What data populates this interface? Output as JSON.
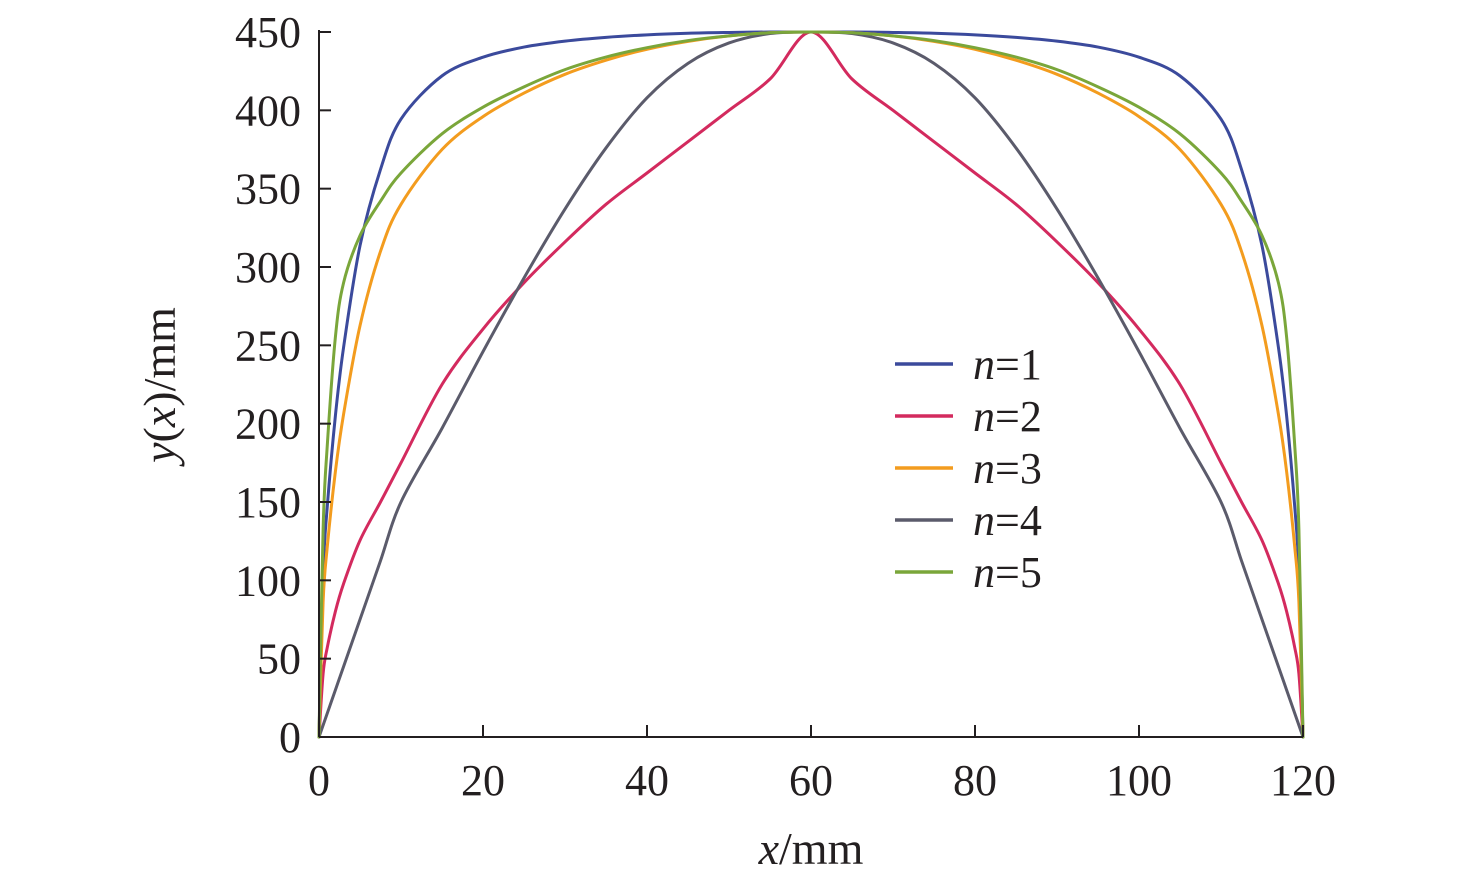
{
  "chart_data": {
    "type": "line",
    "title": "",
    "xlabel": "x/mm",
    "ylabel": "y(x)/mm",
    "xlim": [
      0,
      120
    ],
    "ylim": [
      0,
      450
    ],
    "x_ticks": [
      0,
      20,
      40,
      60,
      80,
      100,
      120
    ],
    "x_tick_labels": [
      "0",
      "20",
      "40",
      "60",
      "80",
      "100",
      "120"
    ],
    "y_ticks": [
      0,
      50,
      100,
      150,
      200,
      250,
      300,
      350,
      400,
      450
    ],
    "y_tick_labels": [
      "0",
      "50",
      "100",
      "150",
      "200",
      "250",
      "300",
      "350",
      "400",
      "450"
    ],
    "grid": false,
    "legend_position": "center-right",
    "x": [
      0,
      0.5,
      1,
      2,
      3,
      5,
      7.5,
      10,
      15,
      20,
      25,
      30,
      35,
      40,
      45,
      50,
      55,
      60,
      65,
      70,
      75,
      80,
      85,
      90,
      95,
      100,
      105,
      110,
      112.5,
      115,
      117,
      118,
      119,
      119.5,
      120
    ],
    "series": [
      {
        "name": "n=1",
        "color": "#3b4a9c",
        "values": [
          0,
          104.1,
          146.5,
          205.1,
          248.8,
          313.6,
          362.3,
          394.4,
          422.0,
          433.9,
          440.4,
          444.2,
          446.6,
          448.2,
          449.2,
          449.7,
          450.0,
          450.0,
          450.0,
          449.7,
          449.2,
          448.2,
          446.6,
          444.2,
          440.4,
          433.9,
          422.0,
          394.4,
          362.3,
          313.6,
          248.8,
          205.1,
          146.5,
          104.1,
          0
        ]
      },
      {
        "name": "n=2",
        "color": "#d32a5e",
        "values": [
          0,
          40.3,
          56.9,
          80.2,
          97.9,
          125.5,
          150.0,
          175.0,
          225.0,
          260.4,
          290.0,
          316.0,
          340.0,
          360.0,
          380.0,
          400.0,
          420.0,
          450.0,
          420.0,
          400.0,
          380.0,
          360.0,
          340.0,
          316.0,
          290.0,
          260.4,
          225.0,
          175.0,
          150.0,
          125.5,
          97.9,
          80.2,
          56.9,
          40.3,
          0
        ]
      },
      {
        "name": "n=3",
        "color": "#f39c1e",
        "values": [
          0,
          86.1,
          120.9,
          169.5,
          206.1,
          262.5,
          310.0,
          340.0,
          375.0,
          396.0,
          411.0,
          423.0,
          432.0,
          439.0,
          444.0,
          447.5,
          449.5,
          450.0,
          449.5,
          447.5,
          444.0,
          439.0,
          432.0,
          423.0,
          411.0,
          396.0,
          375.0,
          340.0,
          310.0,
          262.5,
          206.1,
          169.5,
          120.9,
          86.1,
          0
        ]
      },
      {
        "name": "n=4",
        "color": "#5b5b6b",
        "values": [
          0,
          7.5,
          15.0,
          30.0,
          45.0,
          75.0,
          112.5,
          150.0,
          197.0,
          246.0,
          293.0,
          337.0,
          376.0,
          408.0,
          430.0,
          443.0,
          449.0,
          450.0,
          449.0,
          443.0,
          430.0,
          408.0,
          376.0,
          337.0,
          293.0,
          246.0,
          197.0,
          150.0,
          112.5,
          75.0,
          45.0,
          30.0,
          15.0,
          7.5,
          0
        ]
      },
      {
        "name": "n=5",
        "color": "#7aa63a",
        "values": [
          0,
          132.5,
          185.3,
          255.3,
          290.0,
          320.0,
          342.0,
          360.0,
          385.0,
          402.0,
          415.0,
          426.0,
          434.0,
          440.0,
          444.5,
          447.5,
          449.5,
          450.0,
          449.5,
          447.5,
          444.5,
          440.0,
          434.0,
          426.0,
          415.0,
          402.0,
          385.0,
          360.0,
          342.0,
          320.0,
          290.0,
          255.3,
          185.3,
          132.5,
          0
        ]
      }
    ]
  }
}
